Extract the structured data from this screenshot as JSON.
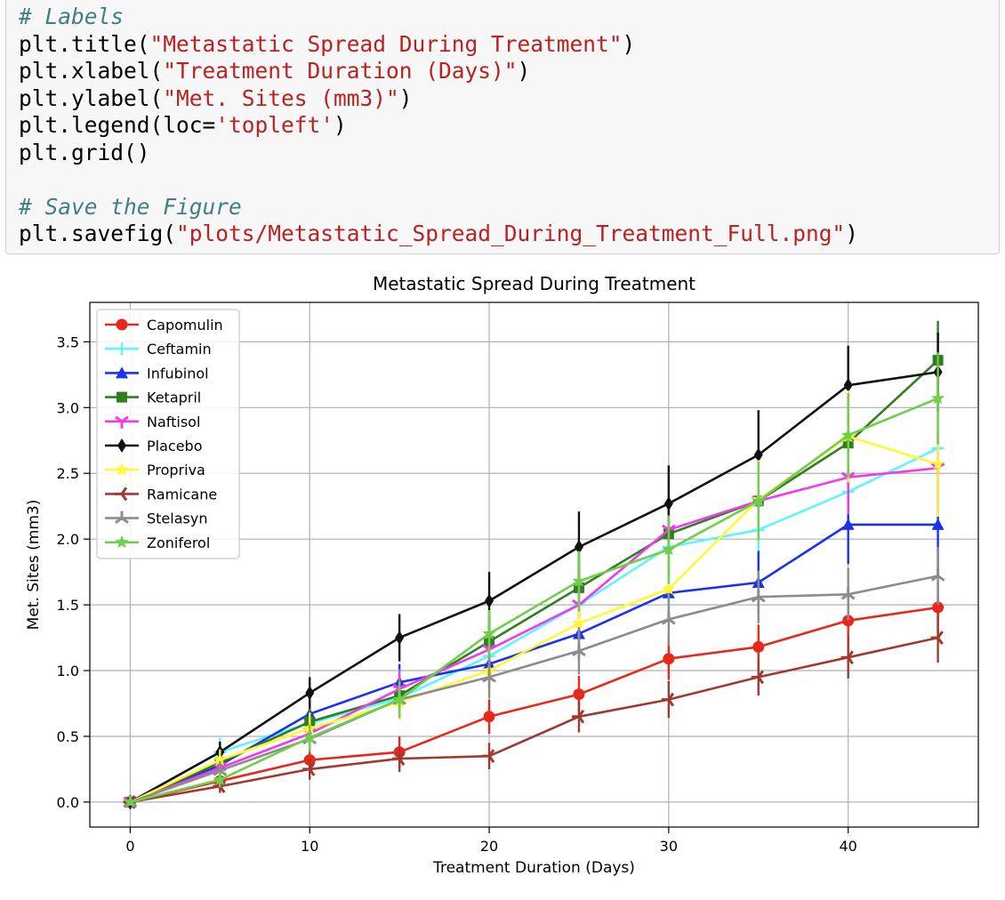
{
  "code_cell": {
    "lines": [
      {
        "type": "comment",
        "text": "# Labels"
      },
      {
        "type": "call",
        "fn": "plt.title(",
        "arg": "\"Metastatic Spread During Treatment\"",
        "end": ")"
      },
      {
        "type": "call",
        "fn": "plt.xlabel(",
        "arg": "\"Treatment Duration (Days)\"",
        "end": ")"
      },
      {
        "type": "call",
        "fn": "plt.ylabel(",
        "arg": "\"Met. Sites (mm3)\"",
        "end": ")"
      },
      {
        "type": "call",
        "fn": "plt.legend(loc=",
        "arg": "'topleft'",
        "end": ")"
      },
      {
        "type": "plain",
        "text": "plt.grid()"
      },
      {
        "type": "blank",
        "text": ""
      },
      {
        "type": "comment",
        "text": "# Save the Figure"
      },
      {
        "type": "call",
        "fn": "plt.savefig(",
        "arg": "\"plots/Metastatic_Spread_During_Treatment_Full.png\"",
        "end": ")"
      }
    ]
  },
  "chart_data": {
    "type": "line",
    "title": "Metastatic Spread During Treatment",
    "xlabel": "Treatment Duration (Days)",
    "ylabel": "Met. Sites (mm3)",
    "xlim": [
      -2.25,
      47.25
    ],
    "ylim": [
      -0.19,
      3.8
    ],
    "xticks": [
      0,
      10,
      20,
      30,
      40
    ],
    "yticks": [
      0.0,
      0.5,
      1.0,
      1.5,
      2.0,
      2.5,
      3.0,
      3.5
    ],
    "ytick_labels": [
      "0.0",
      "0.5",
      "1.0",
      "1.5",
      "2.0",
      "2.5",
      "3.0",
      "3.5"
    ],
    "grid": true,
    "legend_position": "top-left",
    "x": [
      0,
      5,
      10,
      15,
      20,
      25,
      30,
      35,
      40,
      45
    ],
    "series": [
      {
        "name": "Capomulin",
        "color": "#e8281a",
        "marker": "circle",
        "values": [
          0.0,
          0.16,
          0.32,
          0.38,
          0.65,
          0.82,
          1.09,
          1.18,
          1.38,
          1.48
        ],
        "err": [
          0,
          0.07,
          0.1,
          0.12,
          0.13,
          0.14,
          0.16,
          0.17,
          0.18,
          0.2
        ]
      },
      {
        "name": "Ceftamin",
        "color": "#5ff4ff",
        "marker": "plus",
        "values": [
          0.0,
          0.38,
          0.6,
          0.79,
          1.11,
          1.5,
          1.94,
          2.07,
          2.36,
          2.69
        ],
        "err": [
          0,
          0.11,
          0.14,
          0.16,
          0.18,
          0.2,
          0.22,
          0.24,
          0.26,
          0.3
        ]
      },
      {
        "name": "Infubinol",
        "color": "#1a32f0",
        "marker": "triangle",
        "values": [
          0.0,
          0.28,
          0.67,
          0.91,
          1.05,
          1.28,
          1.59,
          1.67,
          2.11,
          2.11
        ],
        "err": [
          0,
          0.07,
          0.12,
          0.14,
          0.18,
          0.2,
          0.22,
          0.24,
          0.3,
          0.35
        ]
      },
      {
        "name": "Ketapril",
        "color": "#2f7f1f",
        "marker": "square",
        "values": [
          0.0,
          0.3,
          0.61,
          0.81,
          1.22,
          1.63,
          2.04,
          2.29,
          2.73,
          3.36
        ],
        "err": [
          0,
          0.08,
          0.12,
          0.15,
          0.18,
          0.2,
          0.24,
          0.26,
          0.3,
          0.3
        ]
      },
      {
        "name": "Naftisol",
        "color": "#ef3af0",
        "marker": "tri-down",
        "values": [
          0.0,
          0.26,
          0.52,
          0.86,
          1.16,
          1.5,
          2.07,
          2.29,
          2.47,
          2.54
        ],
        "err": [
          0,
          0.08,
          0.12,
          0.15,
          0.18,
          0.2,
          0.24,
          0.26,
          0.28,
          0.3
        ]
      },
      {
        "name": "Placebo",
        "color": "#111111",
        "marker": "diamond",
        "values": [
          0.0,
          0.38,
          0.83,
          1.25,
          1.53,
          1.94,
          2.27,
          2.64,
          3.17,
          3.27
        ],
        "err": [
          0,
          0.08,
          0.12,
          0.18,
          0.22,
          0.27,
          0.29,
          0.34,
          0.3,
          0.3
        ]
      },
      {
        "name": "Propriva",
        "color": "#fff833",
        "marker": "star",
        "values": [
          0.0,
          0.32,
          0.56,
          0.76,
          1.0,
          1.36,
          1.62,
          2.3,
          2.78,
          2.57
        ],
        "err": [
          0,
          0.08,
          0.12,
          0.14,
          0.17,
          0.2,
          0.25,
          0.3,
          0.35,
          0.4
        ]
      },
      {
        "name": "Ramicane",
        "color": "#9e3a32",
        "marker": "tri-left",
        "values": [
          0.0,
          0.12,
          0.25,
          0.33,
          0.35,
          0.65,
          0.78,
          0.95,
          1.1,
          1.25
        ],
        "err": [
          0,
          0.05,
          0.08,
          0.1,
          0.1,
          0.12,
          0.14,
          0.14,
          0.16,
          0.19
        ]
      },
      {
        "name": "Stelasyn",
        "color": "#8c8c8c",
        "marker": "tri-up",
        "values": [
          0.0,
          0.24,
          0.48,
          0.78,
          0.95,
          1.15,
          1.39,
          1.56,
          1.58,
          1.72
        ],
        "err": [
          0,
          0.07,
          0.1,
          0.14,
          0.16,
          0.18,
          0.2,
          0.2,
          0.2,
          0.22
        ]
      },
      {
        "name": "Zoniferol",
        "color": "#6fcf4a",
        "marker": "star",
        "values": [
          0.0,
          0.17,
          0.49,
          0.78,
          1.28,
          1.68,
          1.92,
          2.29,
          2.79,
          3.07
        ],
        "err": [
          0,
          0.06,
          0.1,
          0.14,
          0.18,
          0.23,
          0.26,
          0.3,
          0.32,
          0.35
        ]
      }
    ]
  }
}
